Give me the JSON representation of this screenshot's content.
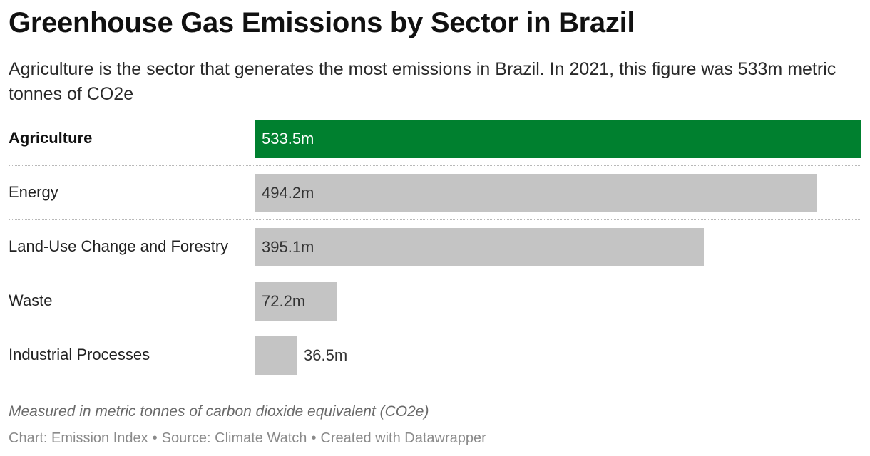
{
  "title": "Greenhouse Gas Emissions by Sector in Brazil",
  "subtitle": "Agriculture is the sector that generates the most emissions in Brazil. In 2021, this figure was 533m metric tonnes of CO2e",
  "note": "Measured in metric tonnes of carbon dioxide equivalent (CO2e)",
  "footer": {
    "chart_credit": "Chart: Emission Index",
    "separator": "•",
    "source": "Source: Climate Watch",
    "tool": "Created with Datawrapper"
  },
  "colors": {
    "highlight": "#00802f",
    "default": "#c4c4c4",
    "label_on_highlight": "#ffffff",
    "label_default": "#333333"
  },
  "chart_data": {
    "type": "bar",
    "orientation": "horizontal",
    "categories": [
      "Agriculture",
      "Energy",
      "Land-Use Change and Forestry",
      "Waste",
      "Industrial Processes"
    ],
    "values": [
      533.5,
      494.2,
      395.1,
      72.2,
      36.5
    ],
    "value_labels": [
      "533.5m",
      "494.2m",
      "395.1m",
      "72.2m",
      "36.5m"
    ],
    "highlighted": "Agriculture",
    "xlim": [
      0,
      533.5
    ],
    "grid": false,
    "legend": "none"
  }
}
